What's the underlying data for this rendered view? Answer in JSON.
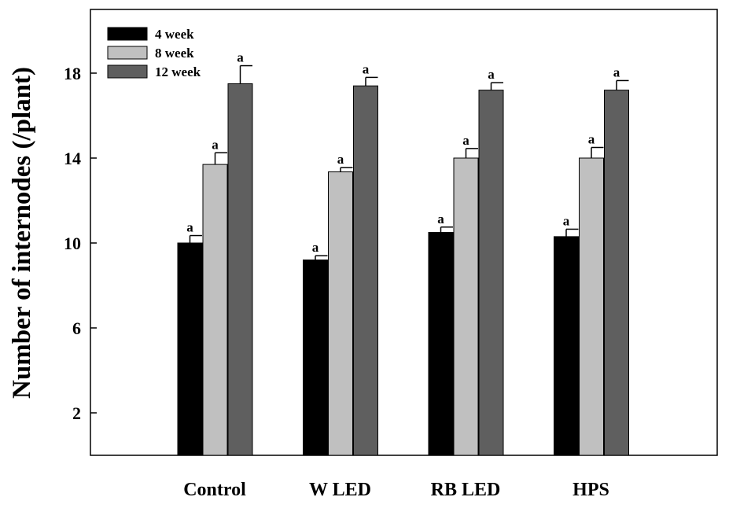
{
  "chart_data": {
    "type": "bar",
    "title": "",
    "xlabel": "",
    "ylabel": "Number of internodes (/plant)",
    "ylim": [
      0,
      21
    ],
    "yticks": [
      2,
      6,
      10,
      14,
      18
    ],
    "categories": [
      "Control",
      "W LED",
      "RB LED",
      "HPS"
    ],
    "legend_position": "top-left",
    "grid": false,
    "series": [
      {
        "name": "4 week",
        "color": "#000000",
        "values": [
          10.0,
          9.2,
          10.5,
          10.3
        ],
        "errors": [
          0.35,
          0.2,
          0.25,
          0.35
        ],
        "labels": [
          "a",
          "a",
          "a",
          "a"
        ]
      },
      {
        "name": "8 week",
        "color": "#c0c0c0",
        "values": [
          13.7,
          13.35,
          14.0,
          14.0
        ],
        "errors": [
          0.55,
          0.2,
          0.45,
          0.5
        ],
        "labels": [
          "a",
          "a",
          "a",
          "a"
        ]
      },
      {
        "name": "12 week",
        "color": "#5f5f5f",
        "values": [
          17.5,
          17.4,
          17.2,
          17.2
        ],
        "errors": [
          0.85,
          0.4,
          0.35,
          0.45
        ],
        "labels": [
          "a",
          "a",
          "a",
          "a"
        ]
      }
    ]
  }
}
